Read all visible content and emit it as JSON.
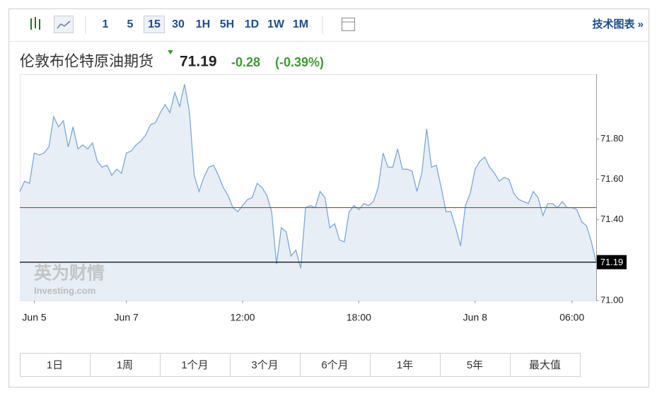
{
  "toolbar": {
    "intervals": [
      "1",
      "5",
      "15",
      "30",
      "1H",
      "5H",
      "1D",
      "1W",
      "1M"
    ],
    "selected_interval_index": 2,
    "link": "技术图表 »"
  },
  "quote": {
    "name": "伦敦布伦特原油期货",
    "price": "71.19",
    "change": "-0.28",
    "change_pct": "(-0.39%)"
  },
  "watermark": {
    "brand": "英为财情",
    "site": "Investing.com"
  },
  "ranges": [
    "1日",
    "1周",
    "1个月",
    "3个月",
    "6个月",
    "1年",
    "5年",
    "最大值"
  ],
  "chart_data": {
    "type": "area",
    "color": "#7ba8d8",
    "values": [
      71.54,
      71.59,
      71.58,
      71.73,
      71.72,
      71.73,
      71.76,
      71.91,
      71.86,
      71.89,
      71.76,
      71.86,
      71.75,
      71.77,
      71.75,
      71.78,
      71.69,
      71.66,
      71.67,
      71.62,
      71.65,
      71.63,
      71.73,
      71.74,
      71.77,
      71.79,
      71.82,
      71.87,
      71.88,
      71.93,
      71.97,
      71.93,
      72.03,
      71.96,
      72.07,
      71.94,
      71.62,
      71.54,
      71.61,
      71.66,
      71.67,
      71.62,
      71.56,
      71.52,
      71.46,
      71.44,
      71.47,
      71.5,
      71.51,
      71.58,
      71.56,
      71.52,
      71.44,
      71.18,
      71.36,
      71.34,
      71.22,
      71.25,
      71.16,
      71.46,
      71.47,
      71.46,
      71.54,
      71.51,
      71.36,
      71.38,
      71.3,
      71.29,
      71.44,
      71.47,
      71.45,
      71.48,
      71.47,
      71.49,
      71.56,
      71.73,
      71.66,
      71.66,
      71.75,
      71.65,
      71.65,
      71.64,
      71.54,
      71.63,
      71.85,
      71.66,
      71.67,
      71.56,
      71.44,
      71.44,
      71.36,
      71.27,
      71.47,
      71.53,
      71.65,
      71.69,
      71.71,
      71.66,
      71.63,
      71.59,
      71.61,
      71.6,
      71.53,
      71.5,
      71.49,
      71.48,
      71.54,
      71.51,
      71.42,
      71.48,
      71.48,
      71.46,
      71.49,
      71.46,
      71.46,
      71.45,
      71.39,
      71.37,
      71.29,
      71.19
    ],
    "xlim": [
      0,
      119
    ],
    "xticks": [
      {
        "value": 3,
        "label": "Jun 5"
      },
      {
        "value": 22,
        "label": "Jun 7"
      },
      {
        "value": 46,
        "label": "12:00"
      },
      {
        "value": 70,
        "label": "18:00"
      },
      {
        "value": 94,
        "label": "Jun 8"
      },
      {
        "value": 114,
        "label": "06:00"
      }
    ],
    "ylim": [
      71.0,
      72.12
    ],
    "yticks": [
      {
        "value": 71.0,
        "label": "71.00"
      },
      {
        "value": 71.4,
        "label": "71.40"
      },
      {
        "value": 71.6,
        "label": "71.60"
      },
      {
        "value": 71.8,
        "label": "71.80"
      }
    ],
    "hlines": [
      {
        "value": 71.46,
        "color": "#c0392b"
      },
      {
        "value": 71.19,
        "label": "71.19",
        "color": "#000000"
      }
    ]
  }
}
